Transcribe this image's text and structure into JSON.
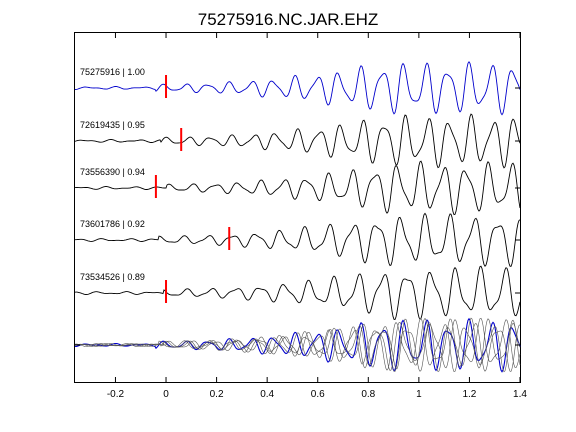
{
  "chart_data": {
    "type": "line",
    "title": "75275916.NC.JAR.EHZ",
    "xlabel": "",
    "ylabel": "",
    "xlim": [
      -0.36,
      1.4
    ],
    "x_ticks": [
      -0.2,
      0,
      0.2,
      0.4,
      0.6,
      0.8,
      1,
      1.2,
      1.4
    ],
    "x_tick_labels": [
      "-0.2",
      "0",
      "0.2",
      "0.4",
      "0.6",
      "0.8",
      "1",
      "1.2",
      "1.4"
    ],
    "grid": false,
    "legend": "none",
    "colors": {
      "reference": "#0000cc",
      "trace": "#000000",
      "pick": "#ff0000",
      "overlay": "#555555"
    },
    "series": [
      {
        "label": "75275916 | 1.00",
        "id": "75275916",
        "cc": 1.0,
        "pick_time": 0.0,
        "color": "#0000cc"
      },
      {
        "label": "72619435 | 0.95",
        "id": "72619435",
        "cc": 0.95,
        "pick_time": 0.06,
        "color": "#000000"
      },
      {
        "label": "73556390 | 0.94",
        "id": "73556390",
        "cc": 0.94,
        "pick_time": -0.04,
        "color": "#000000"
      },
      {
        "label": "73601786 | 0.92",
        "id": "73601786",
        "cc": 0.92,
        "pick_time": 0.25,
        "color": "#000000"
      },
      {
        "label": "73534526 | 0.89",
        "id": "73534526",
        "cc": 0.89,
        "pick_time": 0.0,
        "color": "#000000"
      }
    ],
    "stack": {
      "type": "overlay",
      "label": ""
    }
  }
}
